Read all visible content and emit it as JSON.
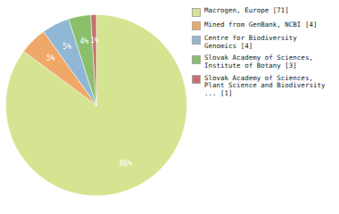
{
  "chart_data": {
    "type": "pie",
    "categories": [
      "Macrogen, Europe [71]",
      "Mined from GenBank, NCBI [4]",
      "Centre for Biodiversity\nGenomics [4]",
      "Slovak Academy of Sciences,\nInstitute of Botany [3]",
      "Slovak Academy of Sciences,\nPlant Science and Biodiversity\n... [1]"
    ],
    "values": [
      86,
      5,
      5,
      4,
      1
    ],
    "value_labels": [
      "86%",
      "5%",
      "5%",
      "4%",
      "1%"
    ],
    "colors": [
      "#d4e490",
      "#f0a868",
      "#90b8d4",
      "#8bbf6c",
      "#c87070"
    ],
    "data_labels": true,
    "legend": "right"
  }
}
